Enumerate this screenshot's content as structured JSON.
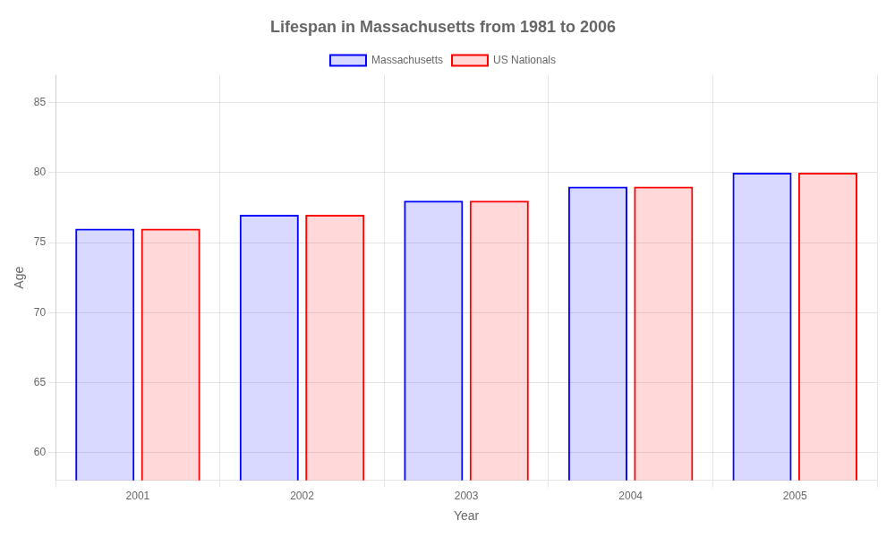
{
  "chart_data": {
    "type": "bar",
    "title": "Lifespan in Massachusetts from 1981 to 2006",
    "categories": [
      "2001",
      "2002",
      "2003",
      "2004",
      "2005"
    ],
    "series": [
      {
        "name": "Massachusetts",
        "color": "#0000ff",
        "values": [
          76,
          77,
          78,
          79,
          80
        ]
      },
      {
        "name": "US Nationals",
        "color": "#ff0000",
        "values": [
          76,
          77,
          78,
          79,
          80
        ]
      }
    ],
    "x_label": "Year",
    "y_label": "Age",
    "ylim": [
      58,
      87
    ],
    "yticks": [
      60,
      65,
      70,
      75,
      80,
      85
    ],
    "grid": true,
    "legend": "top"
  }
}
